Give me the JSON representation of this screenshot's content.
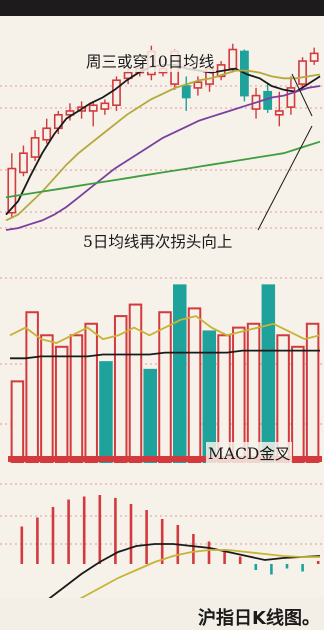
{
  "chart_data": [
    {
      "type": "candlestick",
      "annotations": [
        "周三或穿10日均线",
        "5日均线再次拐头向上"
      ],
      "up_color": "#d23a3e",
      "down_color": "#1fa29c",
      "candles": [
        {
          "o": 9,
          "h": 40,
          "l": 6,
          "c": 32
        },
        {
          "o": 30,
          "h": 44,
          "l": 28,
          "c": 40
        },
        {
          "o": 38,
          "h": 52,
          "l": 36,
          "c": 48
        },
        {
          "o": 47,
          "h": 58,
          "l": 45,
          "c": 53
        },
        {
          "o": 53,
          "h": 62,
          "l": 50,
          "c": 60
        },
        {
          "o": 60,
          "h": 66,
          "l": 57,
          "c": 62
        },
        {
          "o": 62,
          "h": 67,
          "l": 58,
          "c": 64
        },
        {
          "o": 62,
          "h": 67,
          "l": 54,
          "c": 65
        },
        {
          "o": 63,
          "h": 68,
          "l": 60,
          "c": 66
        },
        {
          "o": 65,
          "h": 80,
          "l": 62,
          "c": 78
        },
        {
          "o": 79,
          "h": 84,
          "l": 76,
          "c": 82
        },
        {
          "o": 82,
          "h": 86,
          "l": 80,
          "c": 84
        },
        {
          "o": 81,
          "h": 96,
          "l": 78,
          "c": 93
        },
        {
          "o": 82,
          "h": 86,
          "l": 80,
          "c": 84
        },
        {
          "o": 76,
          "h": 94,
          "l": 73,
          "c": 93
        },
        {
          "o": 75,
          "h": 80,
          "l": 62,
          "c": 69
        },
        {
          "o": 74,
          "h": 80,
          "l": 70,
          "c": 77
        },
        {
          "o": 76,
          "h": 86,
          "l": 72,
          "c": 84
        },
        {
          "o": 80,
          "h": 88,
          "l": 78,
          "c": 86
        },
        {
          "o": 84,
          "h": 97,
          "l": 82,
          "c": 94
        },
        {
          "o": 93,
          "h": 94,
          "l": 67,
          "c": 70
        },
        {
          "o": 63,
          "h": 74,
          "l": 58,
          "c": 70
        },
        {
          "o": 72,
          "h": 76,
          "l": 61,
          "c": 63
        },
        {
          "o": 60,
          "h": 72,
          "l": 54,
          "c": 62
        },
        {
          "o": 64,
          "h": 80,
          "l": 60,
          "c": 74
        },
        {
          "o": 76,
          "h": 90,
          "l": 73,
          "c": 88
        },
        {
          "o": 88,
          "h": 95,
          "l": 86,
          "c": 92
        }
      ],
      "series": [
        {
          "color": "#1a1a1a",
          "values": [
            8,
            15,
            28,
            40,
            50,
            58,
            62,
            66,
            69,
            73,
            78,
            82,
            85,
            86,
            86,
            84,
            83,
            82,
            83,
            84,
            81,
            79,
            75,
            73,
            72,
            76,
            80
          ]
        },
        {
          "color": "#b5a93b",
          "values": [
            5,
            8,
            14,
            20,
            27,
            34,
            40,
            45,
            50,
            55,
            60,
            64,
            68,
            71,
            74,
            76,
            78,
            79,
            81,
            83,
            83,
            82,
            80,
            79,
            79,
            80,
            81
          ]
        },
        {
          "color": "#7a3fa0",
          "values": [
            0,
            1,
            3,
            5,
            8,
            12,
            17,
            22,
            27,
            32,
            36,
            40,
            44,
            48,
            51,
            54,
            57,
            59,
            61,
            63,
            65,
            67,
            69,
            70,
            72,
            74,
            75
          ]
        },
        {
          "color": "#3f9e3f",
          "values": [
            17,
            18,
            19,
            20,
            21,
            22,
            23,
            24,
            25,
            26,
            27,
            28,
            29,
            30,
            31,
            32,
            33,
            34,
            35,
            36,
            37,
            38,
            39,
            40,
            42,
            44,
            46
          ]
        }
      ]
    },
    {
      "type": "bar",
      "values": [
        42,
        78,
        66,
        60,
        66,
        72,
        52,
        76,
        82,
        48,
        78,
        92,
        80,
        68,
        66,
        70,
        72,
        92,
        66,
        60,
        72
      ],
      "directions": [
        "up",
        "up",
        "up",
        "up",
        "up",
        "up",
        "down",
        "up",
        "up",
        "down",
        "up",
        "down",
        "up",
        "down",
        "up",
        "up",
        "up",
        "down",
        "up",
        "up",
        "up"
      ],
      "series": [
        {
          "color": "#c7b336",
          "values": [
            66,
            70,
            64,
            62,
            66,
            70,
            64,
            66,
            70,
            66,
            70,
            74,
            76,
            70,
            66,
            68,
            70,
            72,
            68,
            64,
            66
          ]
        },
        {
          "color": "#1a1a1a",
          "values": [
            54,
            54,
            55,
            55,
            55,
            55,
            56,
            56,
            56,
            56,
            57,
            57,
            57,
            57,
            57,
            58,
            58,
            58,
            58,
            58,
            58
          ]
        }
      ]
    },
    {
      "type": "bar",
      "annotations": [
        "MACD金叉"
      ],
      "values": [
        50,
        62,
        76,
        86,
        90,
        92,
        88,
        80,
        72,
        60,
        52,
        40,
        30,
        20,
        10,
        -8,
        -14,
        -6,
        -10,
        4
      ],
      "series": [
        {
          "color": "#1a1a1a",
          "values": [
            -50,
            -34,
            -20,
            -6,
            8,
            20,
            30,
            36,
            38,
            38,
            36,
            34,
            30,
            26,
            22,
            24,
            25,
            26
          ]
        },
        {
          "color": "#c7b336",
          "values": [
            -62,
            -52,
            -40,
            -28,
            -16,
            -6,
            4,
            12,
            20,
            26,
            30,
            32,
            32,
            30,
            28,
            26,
            25,
            25
          ]
        }
      ]
    }
  ],
  "caption": "沪指日K线图。"
}
